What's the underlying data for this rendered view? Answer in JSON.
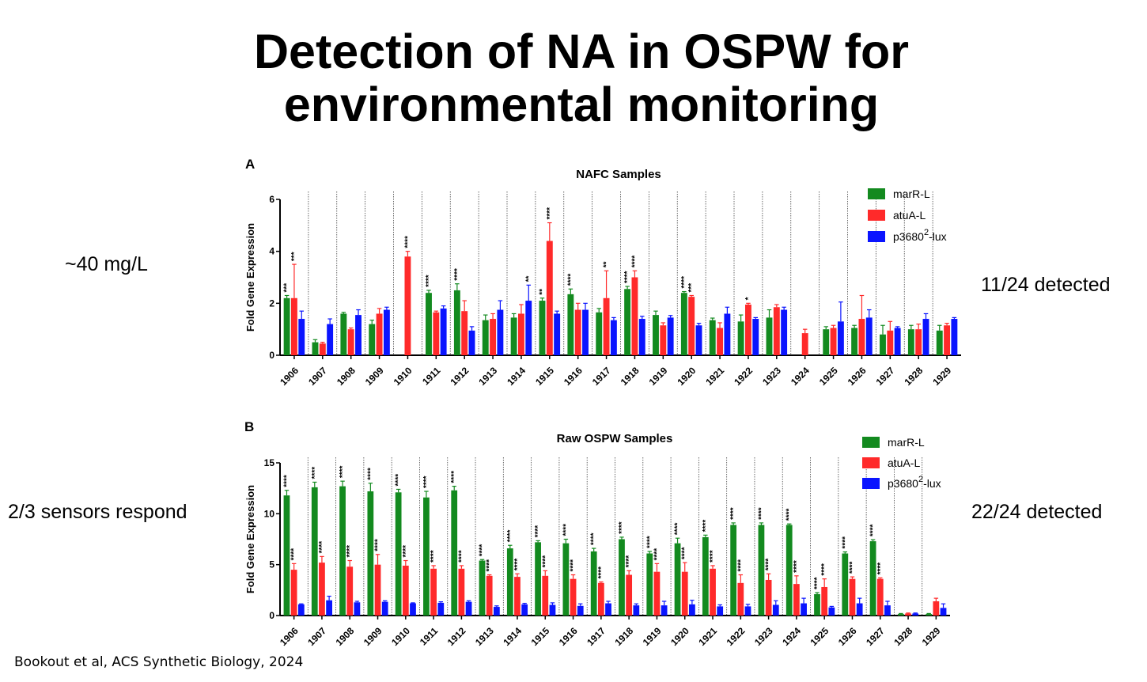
{
  "slide": {
    "title_line1": "Detection of NA in OSPW for",
    "title_line2": "environmental monitoring",
    "left_note_a": "~40 mg/L",
    "left_note_b": "2/3 sensors respond",
    "right_note_a": "11/24 detected",
    "right_note_b": "22/24 detected",
    "citation": "Bookout et al, ACS Synthetic Biology, 2024"
  },
  "chart_data": [
    {
      "type": "bar",
      "panel": "A",
      "title": "NAFC Samples",
      "ylabel": "Fold Gene Expression",
      "ylim": [
        0,
        6
      ],
      "yticks": [
        0,
        2,
        4,
        6
      ],
      "categories": [
        "1906",
        "1907",
        "1908",
        "1909",
        "1910",
        "1911",
        "1912",
        "1913",
        "1914",
        "1915",
        "1916",
        "1917",
        "1918",
        "1919",
        "1920",
        "1921",
        "1922",
        "1923",
        "1924",
        "1925",
        "1926",
        "1927",
        "1928",
        "1929"
      ],
      "legend_position": "top-right",
      "series": [
        {
          "name": "marR-L",
          "color": "#138a1f",
          "values": [
            2.2,
            0.5,
            1.6,
            1.2,
            null,
            2.4,
            2.5,
            1.35,
            1.45,
            2.1,
            2.35,
            1.65,
            2.55,
            1.55,
            2.4,
            1.35,
            1.3,
            1.45,
            null,
            1.0,
            1.05,
            0.8,
            1.0,
            0.95
          ],
          "errors": [
            0.1,
            0.1,
            0.05,
            0.15,
            null,
            0.1,
            0.25,
            0.2,
            0.15,
            0.1,
            0.2,
            0.15,
            0.1,
            0.15,
            0.05,
            0.08,
            0.25,
            0.3,
            null,
            0.1,
            0.1,
            0.35,
            0.15,
            0.2
          ],
          "stars": [
            "***",
            "",
            "",
            "",
            "",
            "****",
            "****",
            "",
            "",
            "**",
            "****",
            "",
            "****",
            "",
            "****",
            "",
            "",
            "",
            "",
            "",
            "",
            "",
            "",
            ""
          ]
        },
        {
          "name": "atuA-L",
          "color": "#ff2a2a",
          "values": [
            2.2,
            0.45,
            1.0,
            1.6,
            3.8,
            1.65,
            1.7,
            1.4,
            1.6,
            4.4,
            1.75,
            2.2,
            3.0,
            1.15,
            2.25,
            1.05,
            1.95,
            1.85,
            0.85,
            1.05,
            1.4,
            0.95,
            1.0,
            1.15
          ],
          "errors": [
            1.3,
            0.05,
            0.05,
            0.2,
            0.2,
            0.05,
            0.4,
            0.2,
            0.35,
            0.7,
            0.25,
            1.05,
            0.25,
            0.1,
            0.05,
            0.2,
            0.05,
            0.1,
            0.15,
            0.1,
            0.9,
            0.35,
            0.2,
            0.08
          ],
          "stars": [
            "***",
            "",
            "",
            "",
            "****",
            "",
            "",
            "",
            "",
            "****",
            "",
            "**",
            "****",
            "",
            "***",
            "",
            "*",
            "",
            "",
            "",
            "",
            "",
            "",
            ""
          ]
        },
        {
          "name": "p3680-lux",
          "name_sup": "2",
          "name_suffix": "-lux",
          "name_base": "p3680",
          "color": "#0a14ff",
          "values": [
            1.4,
            1.2,
            1.55,
            1.75,
            null,
            1.8,
            0.95,
            1.75,
            2.1,
            1.6,
            1.75,
            1.35,
            1.4,
            1.45,
            1.15,
            1.6,
            1.4,
            1.75,
            null,
            1.3,
            1.45,
            1.05,
            1.4,
            1.4
          ],
          "errors": [
            0.3,
            0.2,
            0.2,
            0.1,
            null,
            0.1,
            0.15,
            0.35,
            0.6,
            0.1,
            0.25,
            0.1,
            0.1,
            0.08,
            0.08,
            0.25,
            0.05,
            0.1,
            null,
            0.75,
            0.3,
            0.05,
            0.2,
            0.05
          ],
          "stars": [
            "",
            "",
            "",
            "",
            "",
            "",
            "",
            "",
            "**",
            "",
            "",
            "",
            "",
            "",
            "",
            "",
            "",
            "",
            "",
            "",
            "",
            "",
            "",
            ""
          ]
        }
      ]
    },
    {
      "type": "bar",
      "panel": "B",
      "title": "Raw OSPW Samples",
      "ylabel": "Fold Gene Expression",
      "ylim": [
        0,
        15
      ],
      "yticks": [
        0,
        5,
        10,
        15
      ],
      "categories": [
        "1906",
        "1907",
        "1908",
        "1909",
        "1910",
        "1911",
        "1912",
        "1913",
        "1914",
        "1915",
        "1916",
        "1917",
        "1918",
        "1919",
        "1920",
        "1921",
        "1922",
        "1923",
        "1924",
        "1925",
        "1926",
        "1927",
        "1928",
        "1929"
      ],
      "legend_position": "top-right",
      "series": [
        {
          "name": "marR-L",
          "color": "#138a1f",
          "values": [
            11.8,
            12.6,
            12.7,
            12.2,
            12.1,
            11.6,
            12.3,
            5.4,
            6.6,
            7.2,
            7.1,
            6.3,
            7.5,
            6.1,
            7.1,
            7.7,
            8.9,
            8.9,
            8.9,
            2.1,
            6.1,
            7.3,
            0.15,
            0.15
          ],
          "errors": [
            0.5,
            0.5,
            0.5,
            0.8,
            0.3,
            0.6,
            0.4,
            0.1,
            0.3,
            0.15,
            0.4,
            0.3,
            0.2,
            0.2,
            0.5,
            0.2,
            0.2,
            0.2,
            0.1,
            0.15,
            0.15,
            0.15,
            0.05,
            0.05
          ],
          "stars": [
            "****",
            "****",
            "****",
            "****",
            "****",
            "****",
            "****",
            "****",
            "****",
            "****",
            "****",
            "****",
            "****",
            "****",
            "****",
            "****",
            "****",
            "****",
            "****",
            "****",
            "****",
            "****",
            "",
            ""
          ]
        },
        {
          "name": "atuA-L",
          "color": "#ff2a2a",
          "values": [
            4.5,
            5.2,
            4.8,
            5.0,
            4.9,
            4.6,
            4.6,
            3.9,
            3.8,
            3.9,
            3.6,
            3.2,
            4.0,
            4.3,
            4.3,
            4.6,
            3.2,
            3.5,
            3.1,
            2.8,
            3.6,
            3.6,
            0.2,
            1.4
          ],
          "errors": [
            0.6,
            0.6,
            0.6,
            1.0,
            0.5,
            0.3,
            0.3,
            0.1,
            0.3,
            0.5,
            0.4,
            0.1,
            0.4,
            0.8,
            0.9,
            0.3,
            0.8,
            0.6,
            0.8,
            0.8,
            0.2,
            0.1,
            0.05,
            0.3
          ],
          "stars": [
            "****",
            "****",
            "****",
            "****",
            "****",
            "****",
            "****",
            "****",
            "****",
            "****",
            "****",
            "****",
            "****",
            "****",
            "****",
            "****",
            "****",
            "****",
            "****",
            "****",
            "****",
            "****",
            "",
            ""
          ]
        },
        {
          "name": "p3680-lux",
          "name_sup": "2",
          "name_suffix": "-lux",
          "name_base": "p3680",
          "color": "#0a14ff",
          "values": [
            1.1,
            1.5,
            1.3,
            1.35,
            1.2,
            1.25,
            1.35,
            0.85,
            1.1,
            1.05,
            0.95,
            1.2,
            1.0,
            1.0,
            1.1,
            0.9,
            0.9,
            1.05,
            1.2,
            0.8,
            1.2,
            1.0,
            0.2,
            0.75
          ],
          "errors": [
            0.05,
            0.4,
            0.1,
            0.1,
            0.05,
            0.1,
            0.1,
            0.1,
            0.1,
            0.2,
            0.2,
            0.2,
            0.15,
            0.4,
            0.4,
            0.15,
            0.2,
            0.4,
            0.5,
            0.1,
            0.5,
            0.4,
            0.05,
            0.4
          ],
          "stars": [
            "",
            "",
            "",
            "",
            "",
            "",
            "",
            "",
            "",
            "",
            "",
            "",
            "",
            "",
            "",
            "",
            "",
            "",
            "",
            "",
            "",
            "",
            "",
            ""
          ]
        }
      ]
    }
  ]
}
